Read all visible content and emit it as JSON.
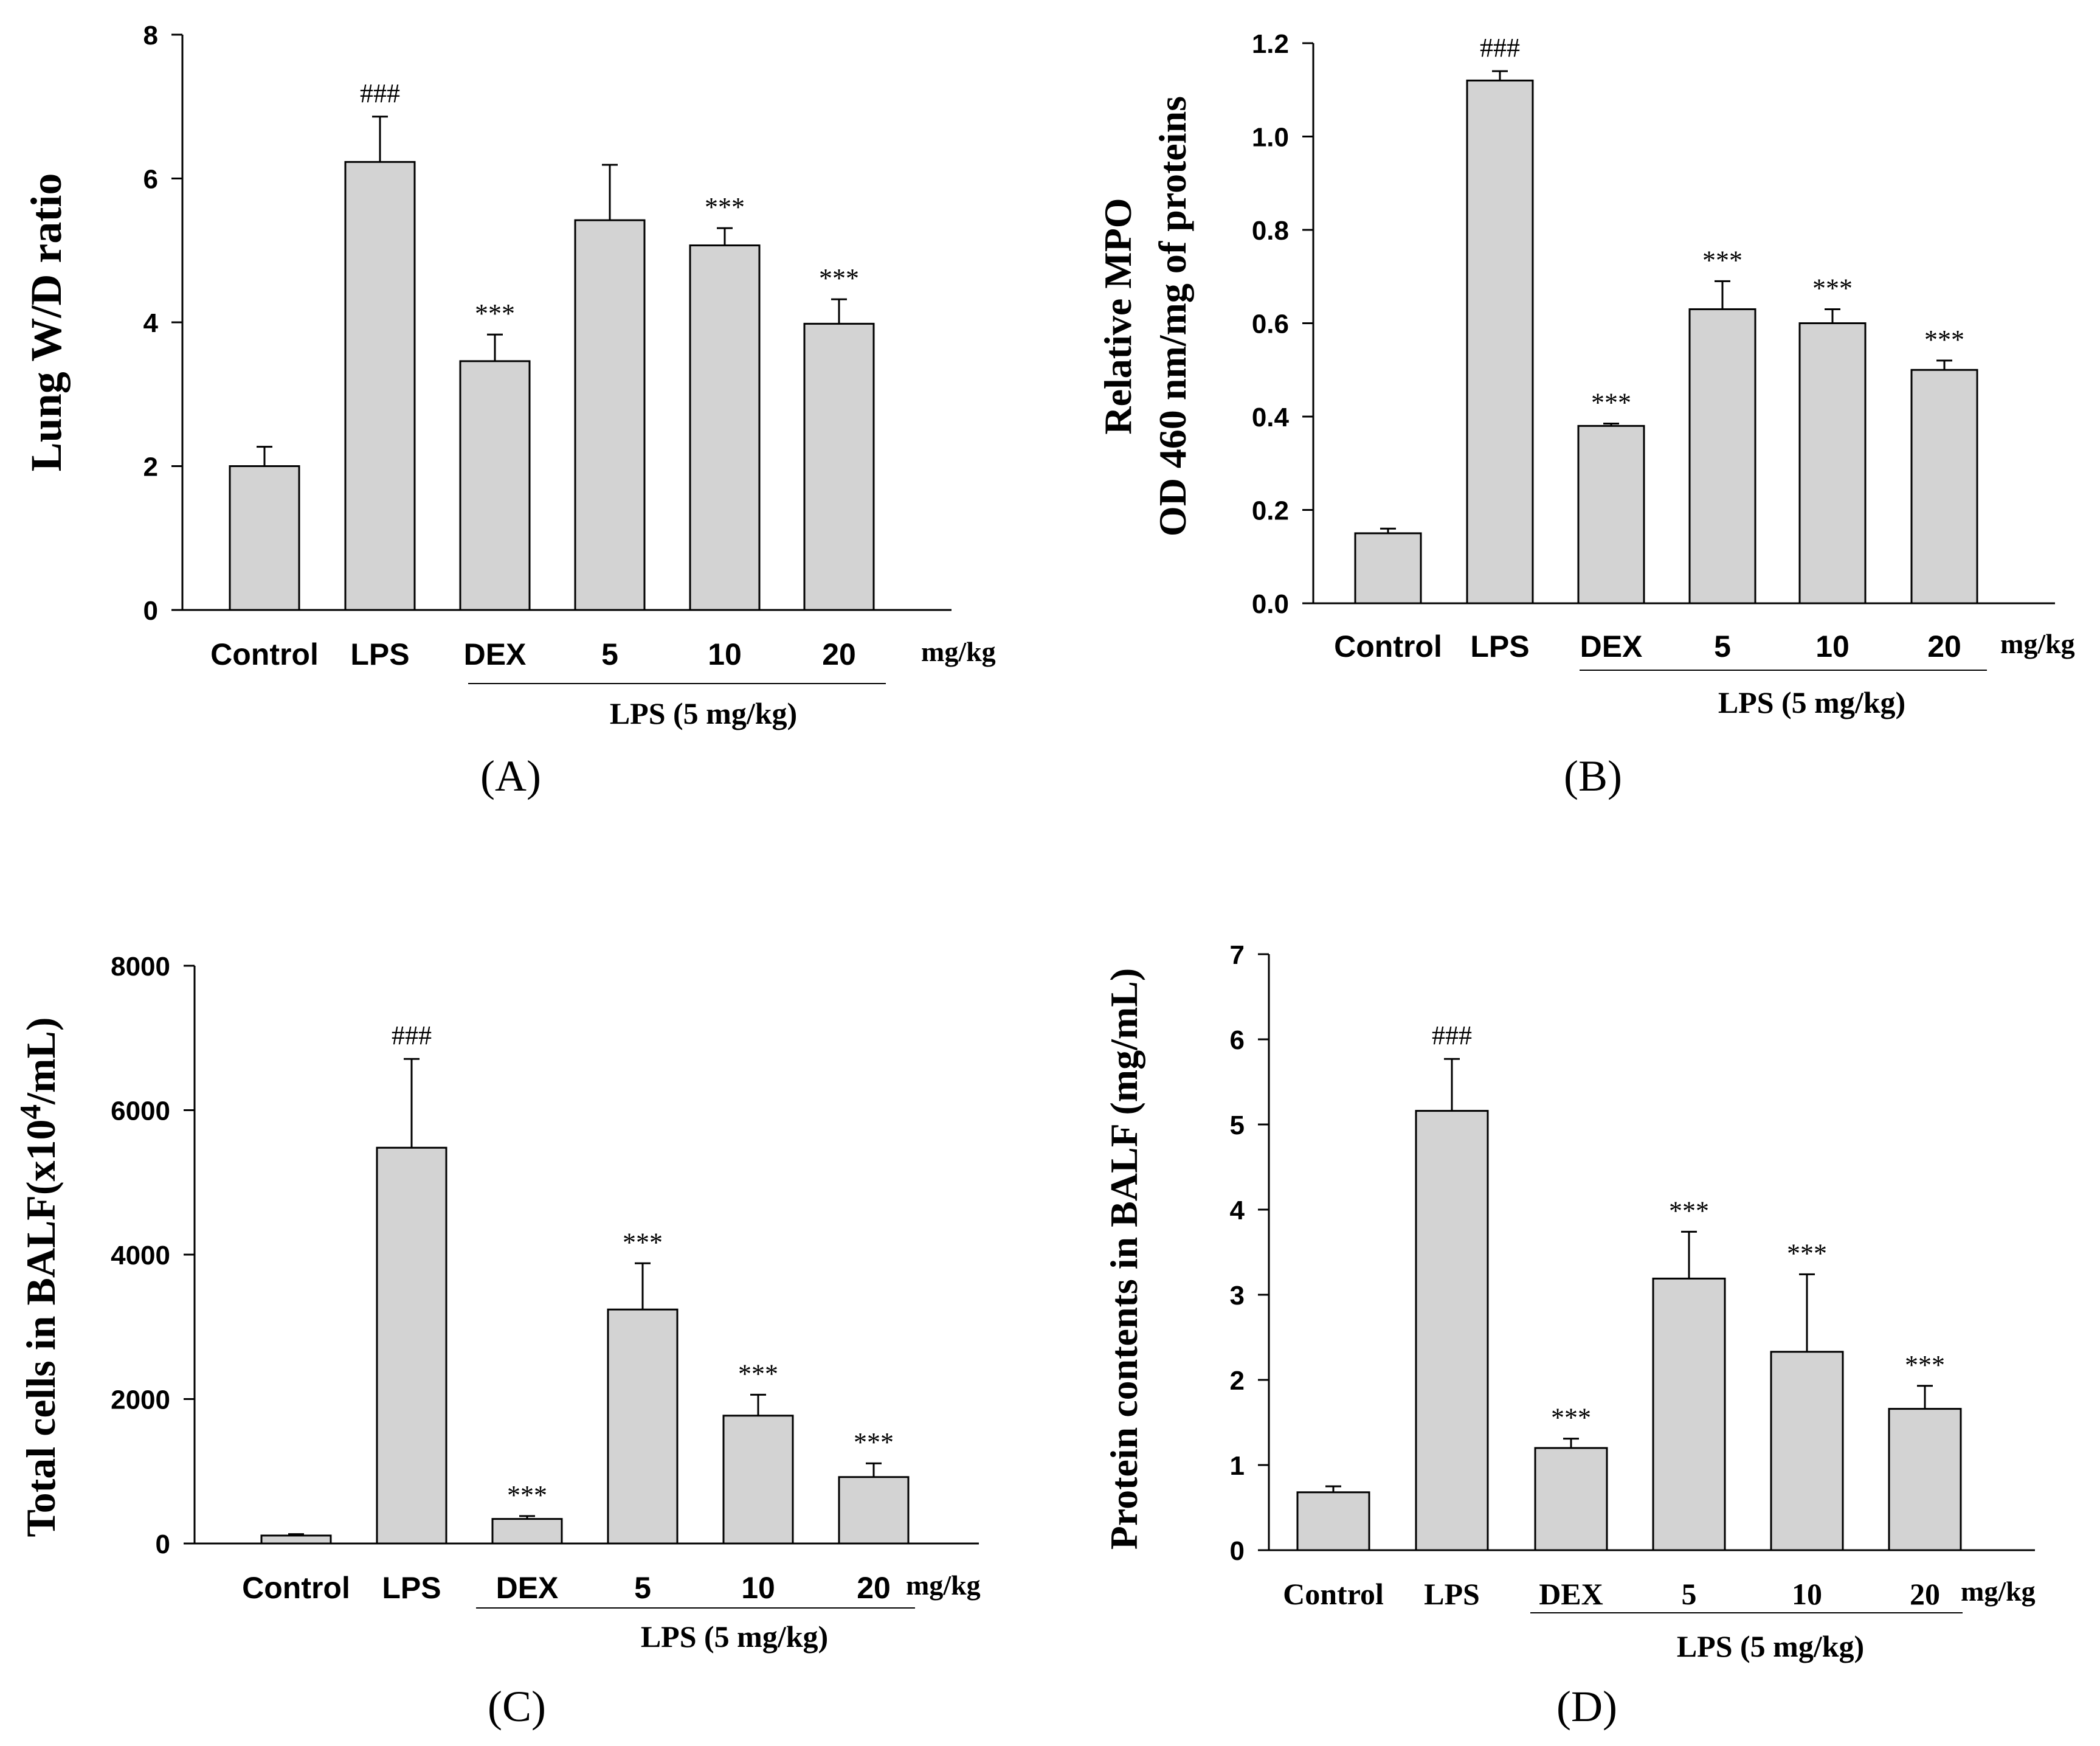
{
  "figure": {
    "background": "#ffffff",
    "bar_color": "#d3d3d3"
  },
  "chart_data": [
    {
      "panel": "(A)",
      "type": "bar",
      "ylabel": "Lung  W/D  ratio",
      "ylim": [
        0,
        8
      ],
      "yticks": [
        "0",
        "2",
        "4",
        "6",
        "8"
      ],
      "categories": [
        "Control",
        "LPS",
        "DEX",
        "5",
        "10",
        "20"
      ],
      "unit_label": "mg/kg",
      "group_label": "LPS (5 mg/kg)",
      "values": [
        2.0,
        6.23,
        3.46,
        5.42,
        5.07,
        3.98
      ],
      "errors": [
        0.27,
        0.63,
        0.37,
        0.77,
        0.24,
        0.34
      ],
      "annotations": [
        "",
        "###",
        "***",
        "",
        "***",
        "***"
      ]
    },
    {
      "panel": "(B)",
      "type": "bar",
      "ylabel_lines": [
        "Relative  MPO",
        "OD  460 nm/mg  of  proteins"
      ],
      "ylim": [
        0,
        1.2
      ],
      "yticks": [
        "0.0",
        "0.2",
        "0.4",
        "0.6",
        "0.8",
        "1.0",
        "1.2"
      ],
      "categories": [
        "Control",
        "LPS",
        "DEX",
        "5",
        "10",
        "20"
      ],
      "unit_label": "mg/kg",
      "group_label": "LPS (5 mg/kg)",
      "values": [
        0.15,
        1.12,
        0.38,
        0.63,
        0.6,
        0.5
      ],
      "errors": [
        0.01,
        0.02,
        0.005,
        0.06,
        0.03,
        0.02
      ],
      "annotations": [
        "",
        "###",
        "***",
        "***",
        "***",
        "***"
      ]
    },
    {
      "panel": "(C)",
      "type": "bar",
      "ylabel_main": "Total  cells  in  BALF(x10",
      "ylabel_sup": "4",
      "ylabel_end": "/mL)",
      "ylim": [
        0,
        8000
      ],
      "yticks": [
        "0",
        "2000",
        "4000",
        "6000",
        "8000"
      ],
      "categories": [
        "Control",
        "LPS",
        "DEX",
        "5",
        "10",
        "20"
      ],
      "unit_label": "mg/kg",
      "group_label": "LPS (5 mg/kg)",
      "values": [
        110,
        5480,
        340,
        3240,
        1770,
        920
      ],
      "errors": [
        20,
        1230,
        40,
        640,
        290,
        190
      ],
      "annotations": [
        "",
        "###",
        "***",
        "***",
        "***",
        "***"
      ]
    },
    {
      "panel": "(D)",
      "type": "bar",
      "ylabel": "Protein  contents  in  BALF (mg/mL)",
      "ylim": [
        0,
        7
      ],
      "yticks": [
        "0",
        "1",
        "2",
        "3",
        "4",
        "5",
        "6",
        "7"
      ],
      "categories": [
        "Control",
        "LPS",
        "DEX",
        "5",
        "10",
        "20"
      ],
      "unit_label": "mg/kg",
      "group_label": "LPS (5 mg/kg)",
      "values": [
        0.68,
        5.16,
        1.2,
        3.19,
        2.33,
        1.66
      ],
      "errors": [
        0.07,
        0.61,
        0.11,
        0.55,
        0.91,
        0.27
      ],
      "annotations": [
        "",
        "###",
        "***",
        "***",
        "***",
        "***"
      ]
    }
  ]
}
